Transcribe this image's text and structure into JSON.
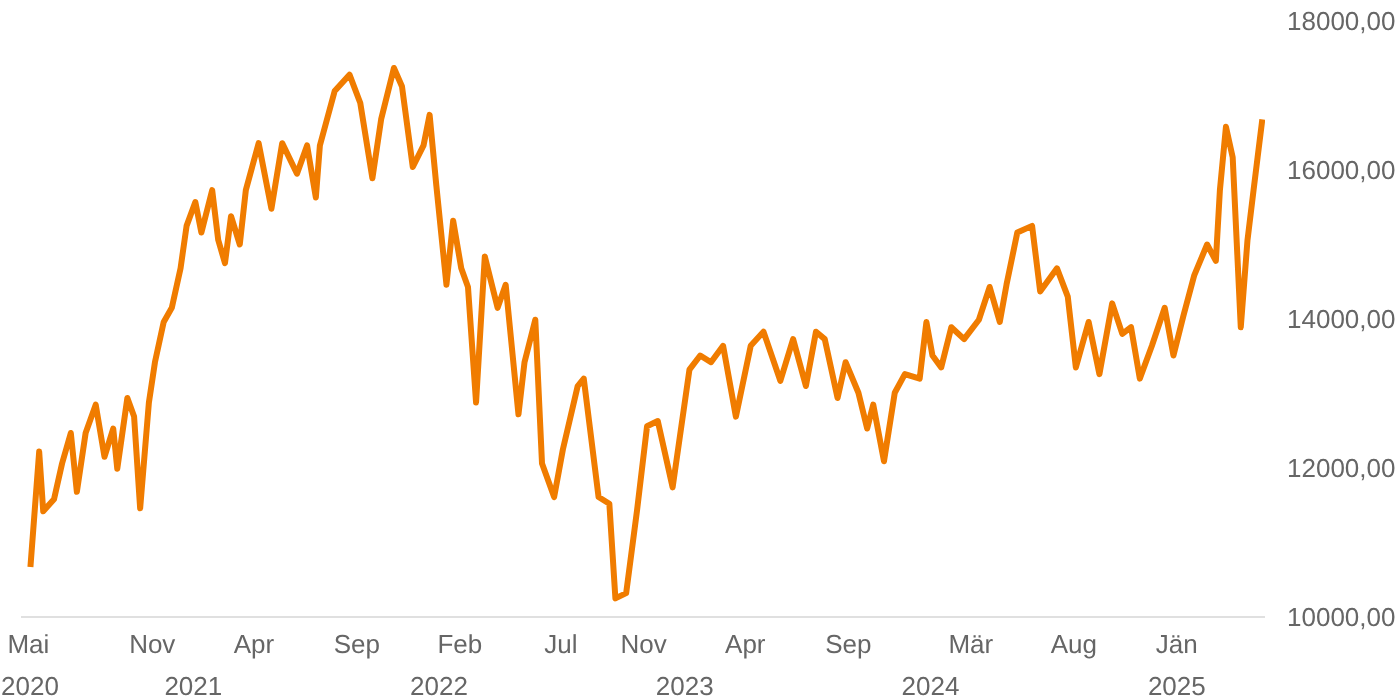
{
  "chart_data": {
    "type": "line",
    "x": [
      "2020-05-04",
      "2020-05-17",
      "2020-05-23",
      "2020-06-08",
      "2020-06-20",
      "2020-07-03",
      "2020-07-12",
      "2020-07-25",
      "2020-08-09",
      "2020-08-22",
      "2020-09-04",
      "2020-09-10",
      "2020-09-25",
      "2020-10-05",
      "2020-10-14",
      "2020-10-27",
      "2020-11-05",
      "2020-11-18",
      "2020-11-30",
      "2020-12-13",
      "2020-12-22",
      "2021-01-04",
      "2021-01-13",
      "2021-01-29",
      "2021-02-07",
      "2021-02-17",
      "2021-02-26",
      "2021-03-11",
      "2021-03-20",
      "2021-04-08",
      "2021-04-27",
      "2021-05-13",
      "2021-06-04",
      "2021-06-19",
      "2021-07-02",
      "2021-07-08",
      "2021-07-30",
      "2021-08-21",
      "2021-09-06",
      "2021-09-24",
      "2021-10-07",
      "2021-10-26",
      "2021-11-07",
      "2021-11-23",
      "2021-12-09",
      "2021-12-18",
      "2021-12-28",
      "2022-01-12",
      "2022-01-22",
      "2022-02-03",
      "2022-02-13",
      "2022-02-25",
      "2022-03-10",
      "2022-03-29",
      "2022-04-10",
      "2022-04-29",
      "2022-05-08",
      "2022-05-24",
      "2022-06-03",
      "2022-06-21",
      "2022-07-04",
      "2022-07-26",
      "2022-08-04",
      "2022-08-26",
      "2022-09-11",
      "2022-09-20",
      "2022-10-06",
      "2022-10-22",
      "2022-11-06",
      "2022-11-22",
      "2022-12-14",
      "2023-01-08",
      "2023-01-24",
      "2023-02-09",
      "2023-02-27",
      "2023-03-18",
      "2023-04-09",
      "2023-04-28",
      "2023-05-23",
      "2023-06-11",
      "2023-06-30",
      "2023-07-15",
      "2023-07-28",
      "2023-08-16",
      "2023-08-28",
      "2023-09-16",
      "2023-09-29",
      "2023-10-08",
      "2023-10-24",
      "2023-11-09",
      "2023-11-24",
      "2023-12-16",
      "2023-12-26",
      "2024-01-04",
      "2024-01-17",
      "2024-02-01",
      "2024-02-20",
      "2024-03-13",
      "2024-03-29",
      "2024-04-13",
      "2024-04-23",
      "2024-05-09",
      "2024-05-31",
      "2024-06-12",
      "2024-07-07",
      "2024-07-23",
      "2024-08-04",
      "2024-08-23",
      "2024-09-08",
      "2024-09-27",
      "2024-10-12",
      "2024-10-25",
      "2024-11-07",
      "2024-11-25",
      "2024-12-14",
      "2024-12-27",
      "2025-01-11",
      "2025-01-27",
      "2025-02-15",
      "2025-02-28",
      "2025-03-06",
      "2025-03-15",
      "2025-03-25",
      "2025-04-06",
      "2025-04-16",
      "2025-04-25",
      "2025-05-01",
      "2025-05-08"
    ],
    "series": [
      {
        "color": "#f07c00",
        "values": [
          10670,
          12220,
          11420,
          11580,
          12060,
          12470,
          11680,
          12470,
          12850,
          12150,
          12530,
          11990,
          12940,
          12690,
          11460,
          12880,
          13420,
          13960,
          14150,
          14680,
          15250,
          15570,
          15160,
          15730,
          15060,
          14750,
          15380,
          15000,
          15730,
          16360,
          15480,
          16360,
          15950,
          16330,
          15630,
          16330,
          17060,
          17280,
          16900,
          15890,
          16680,
          17370,
          17120,
          16040,
          16330,
          16740,
          15790,
          14460,
          15320,
          14680,
          14430,
          12880,
          14840,
          14150,
          14460,
          12720,
          13420,
          13990,
          12060,
          11610,
          12250,
          13100,
          13200,
          11610,
          11520,
          10250,
          10320,
          11420,
          12560,
          12630,
          11740,
          13320,
          13510,
          13420,
          13640,
          12690,
          13640,
          13830,
          13170,
          13730,
          13100,
          13830,
          13730,
          12940,
          13420,
          13010,
          12530,
          12850,
          12090,
          13010,
          13260,
          13200,
          13960,
          13510,
          13350,
          13890,
          13730,
          13990,
          14430,
          13960,
          14460,
          15160,
          15250,
          14370,
          14680,
          14300,
          13350,
          13960,
          13260,
          14210,
          13800,
          13890,
          13200,
          13640,
          14150,
          13510,
          14050,
          14590,
          15000,
          14780,
          15730,
          16580,
          16170,
          13890,
          15060,
          15730,
          16170,
          16680
        ]
      }
    ],
    "xlim": [
      "2020-04-20",
      "2025-05-12"
    ],
    "xticks": [
      {
        "value": "2020-05-01",
        "label": "Mai"
      },
      {
        "value": "2020-11-01",
        "label": "Nov"
      },
      {
        "value": "2021-04-01",
        "label": "Apr"
      },
      {
        "value": "2021-09-01",
        "label": "Sep"
      },
      {
        "value": "2022-02-01",
        "label": "Feb"
      },
      {
        "value": "2022-07-01",
        "label": "Jul"
      },
      {
        "value": "2022-11-01",
        "label": "Nov"
      },
      {
        "value": "2023-04-01",
        "label": "Apr"
      },
      {
        "value": "2023-09-01",
        "label": "Sep"
      },
      {
        "value": "2024-03-01",
        "label": "Mär"
      },
      {
        "value": "2024-08-01",
        "label": "Aug"
      },
      {
        "value": "2025-01-01",
        "label": "Jän"
      }
    ],
    "x2lim": [
      "2020-04-20",
      "2025-05-12"
    ],
    "x2ticks": [
      {
        "value": "2020-05-01",
        "label": "2020"
      },
      {
        "value": "2021-01-01",
        "label": "2021"
      },
      {
        "value": "2022-01-01",
        "label": "2022"
      },
      {
        "value": "2023-01-01",
        "label": "2023"
      },
      {
        "value": "2024-01-01",
        "label": "2024"
      },
      {
        "value": "2025-01-01",
        "label": "2025"
      }
    ],
    "ylim": [
      10000,
      18000
    ],
    "yticks": [
      {
        "value": 10000,
        "label": "10000,00"
      },
      {
        "value": 12000,
        "label": "12000,00"
      },
      {
        "value": 14000,
        "label": "14000,00"
      },
      {
        "value": 16000,
        "label": "16000,00"
      },
      {
        "value": 18000,
        "label": "18000,00"
      }
    ],
    "grid": false
  }
}
